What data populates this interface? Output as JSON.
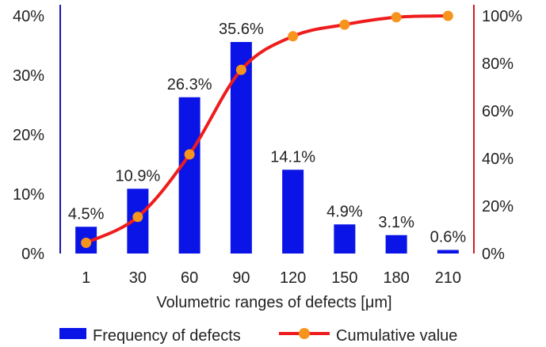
{
  "chart_data": {
    "type": "bar",
    "categories": [
      "1",
      "30",
      "60",
      "90",
      "120",
      "150",
      "180",
      "210"
    ],
    "series": [
      {
        "name": "Frequency of defects",
        "type": "bar",
        "axis": "left",
        "values": [
          4.5,
          10.9,
          26.3,
          35.6,
          14.1,
          4.9,
          3.1,
          0.6
        ],
        "labels": [
          "4.5%",
          "10.9%",
          "26.3%",
          "35.6%",
          "14.1%",
          "4.9%",
          "3.1%",
          "0.6%"
        ],
        "color": "#0a14e6"
      },
      {
        "name": "Cumulative value",
        "type": "line",
        "axis": "right",
        "values": [
          4.5,
          15.4,
          41.7,
          77.3,
          91.4,
          96.3,
          99.4,
          100
        ],
        "color": "#ee1c1c",
        "marker_color": "#f7941d"
      }
    ],
    "xlabel": "Volumetric ranges of defects [μm]",
    "y_left": {
      "ticks": [
        "0%",
        "10%",
        "20%",
        "30%",
        "40%"
      ],
      "range": [
        0,
        40
      ],
      "color": "#1a1ab0"
    },
    "y_right": {
      "ticks": [
        "0%",
        "20%",
        "40%",
        "60%",
        "80%",
        "100%"
      ],
      "range": [
        0,
        100
      ],
      "color": "#d81b1b"
    },
    "grid": false,
    "legend_position": "bottom"
  }
}
